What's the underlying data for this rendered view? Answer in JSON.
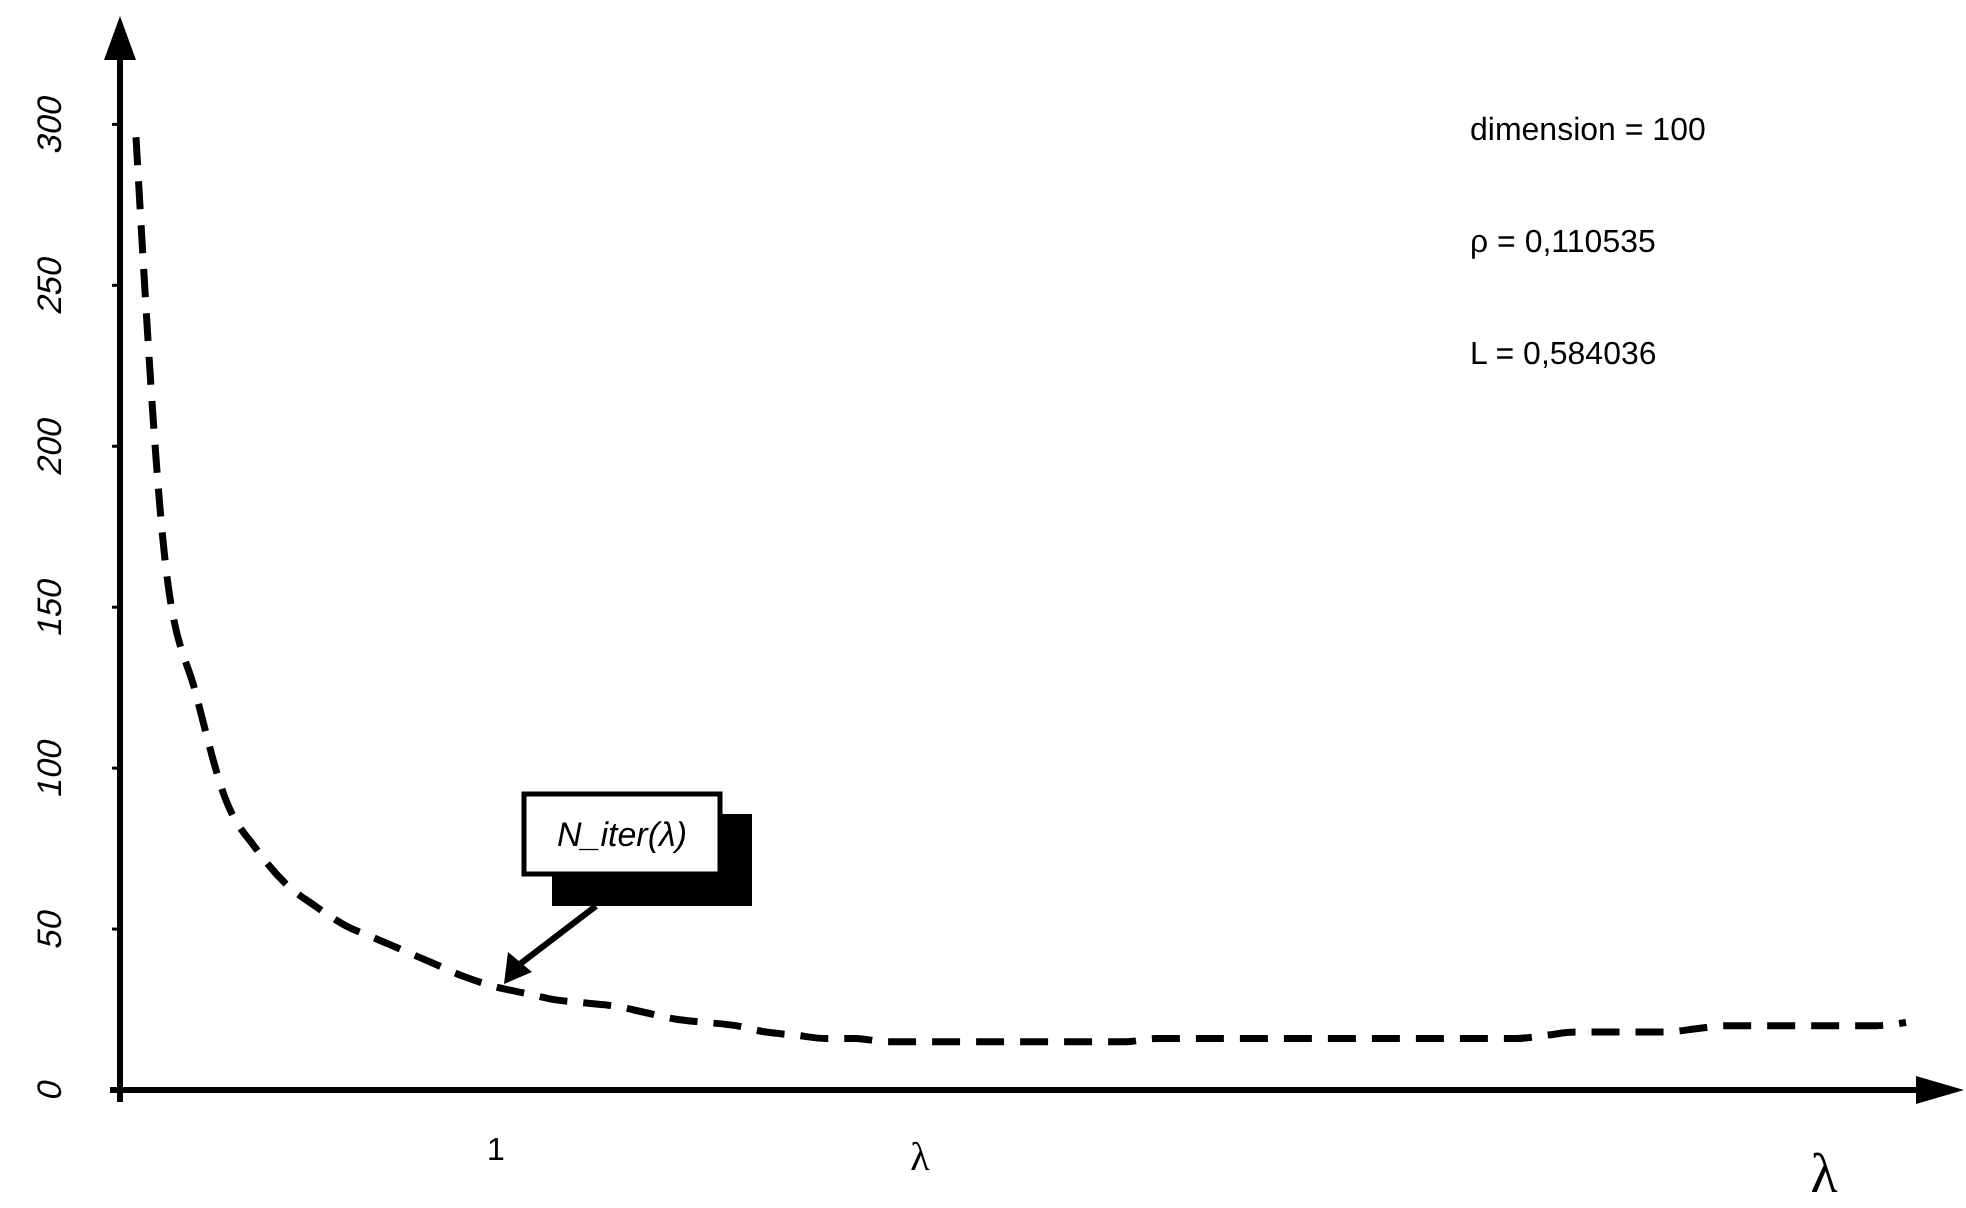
{
  "chart_data": {
    "type": "line",
    "xlabel": "λ",
    "categories": [
      null,
      null,
      null,
      null,
      null,
      null,
      null,
      null,
      null,
      null,
      null,
      null,
      "1",
      null,
      null,
      null,
      null,
      null,
      null,
      null,
      null,
      null,
      null,
      null,
      null,
      null,
      null,
      null,
      null,
      null,
      null,
      null,
      null,
      null,
      null,
      null,
      null,
      null,
      null,
      null,
      null,
      null,
      null,
      null,
      null,
      null,
      null,
      null,
      null,
      null,
      null,
      null,
      null,
      null,
      null,
      null,
      null,
      null,
      null,
      null
    ],
    "series": [
      {
        "color": "#000000",
        "line_style": "dashed",
        "values": [
          296,
          162,
          123,
          90,
          75,
          64,
          57,
          51,
          47,
          43,
          39,
          35,
          32,
          30,
          28,
          27,
          26,
          24,
          22,
          21,
          20,
          18,
          17,
          16,
          16,
          15,
          15,
          15,
          15,
          15,
          15,
          15,
          15,
          15,
          16,
          16,
          16,
          16,
          16,
          16,
          16,
          16,
          16,
          16,
          16,
          16,
          16,
          17,
          18,
          18,
          18,
          18,
          19,
          20,
          20,
          20,
          20,
          20,
          20,
          21
        ]
      }
    ],
    "ylim": [
      0,
      320
    ],
    "yticks": [
      0,
      50,
      100,
      150,
      200,
      250,
      300
    ],
    "grid": false,
    "marker": "none",
    "annotations": [
      "dimension = 100",
      "ρ = 0,110535",
      "L = 0,584036",
      "N_iter(λ)",
      "λ"
    ]
  }
}
